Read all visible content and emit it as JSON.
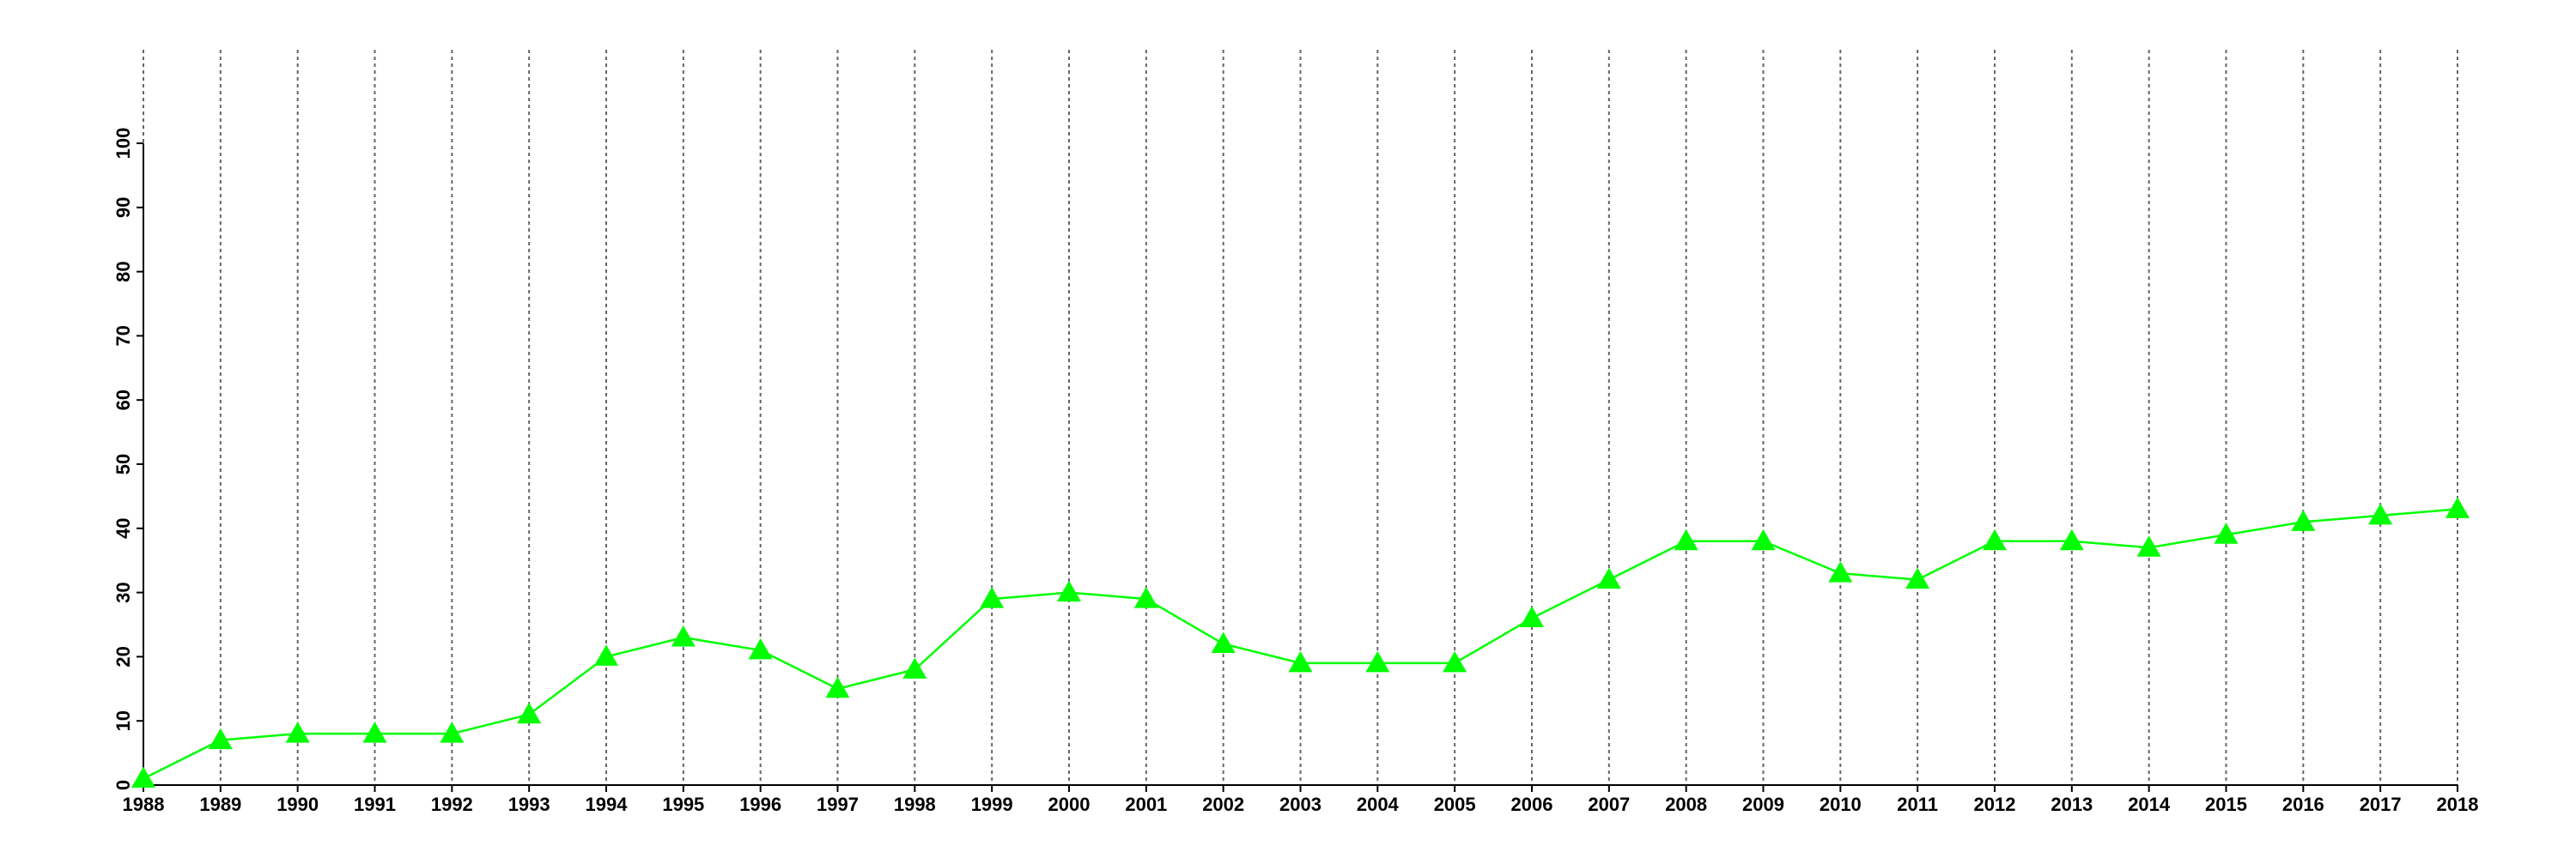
{
  "chart_data": {
    "type": "line",
    "x": [
      1988,
      1989,
      1990,
      1991,
      1992,
      1993,
      1994,
      1995,
      1996,
      1997,
      1998,
      1999,
      2000,
      2001,
      2002,
      2003,
      2004,
      2005,
      2006,
      2007,
      2008,
      2009,
      2010,
      2011,
      2012,
      2013,
      2014,
      2015,
      2016,
      2017,
      2018
    ],
    "values": [
      1,
      7,
      8,
      8,
      8,
      11,
      20,
      23,
      21,
      15,
      18,
      29,
      30,
      29,
      22,
      19,
      19,
      19,
      26,
      32,
      38,
      38,
      33,
      32,
      38,
      38,
      37,
      39,
      41,
      42,
      43
    ],
    "color": "#00ff00",
    "marker": "triangle",
    "xlim": [
      1988,
      2018
    ],
    "xticks": [
      1988,
      1989,
      1990,
      1991,
      1992,
      1993,
      1994,
      1995,
      1996,
      1997,
      1998,
      1999,
      2000,
      2001,
      2002,
      2003,
      2004,
      2005,
      2006,
      2007,
      2008,
      2009,
      2010,
      2011,
      2012,
      2013,
      2014,
      2015,
      2016,
      2017,
      2018
    ],
    "ylim": [
      0,
      100
    ],
    "yticks": [
      0,
      10,
      20,
      30,
      40,
      50,
      60,
      70,
      80,
      90,
      100
    ],
    "grid": "x"
  }
}
